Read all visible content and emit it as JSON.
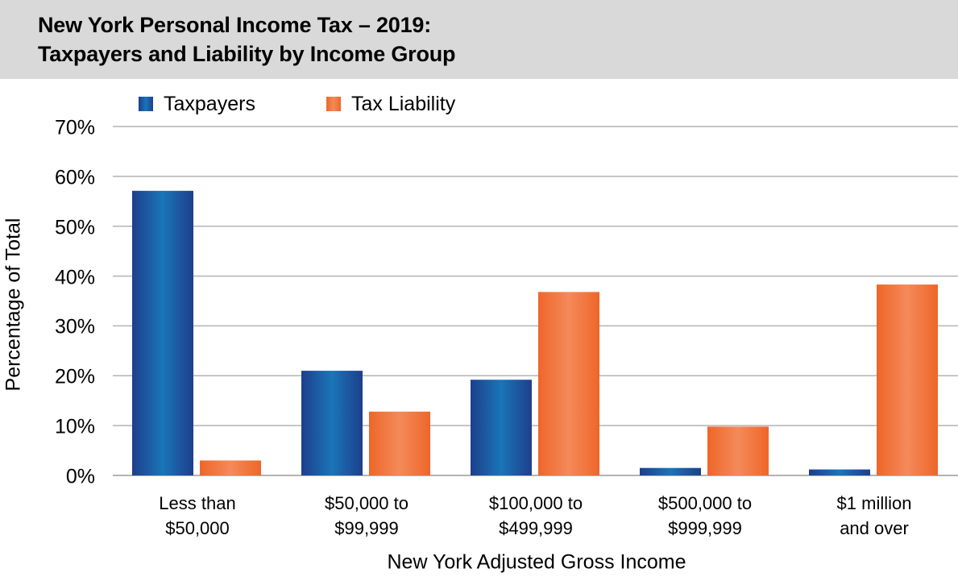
{
  "title": {
    "line1": "New York Personal Income Tax – 2019:",
    "line2": "Taxpayers and Liability by Income Group"
  },
  "colors": {
    "taxpayers_dark": "#1d3f8c",
    "taxpayers_light": "#1a75b8",
    "liability_dark": "#ee6629",
    "liability_light": "#f48a5a",
    "title_band": "#d9d9d9",
    "grid": "#b3b3b3"
  },
  "chart_data": {
    "type": "bar",
    "title": "New York Personal Income Tax – 2019: Taxpayers and Liability by Income Group",
    "xlabel": "New York Adjusted Gross Income",
    "ylabel": "Percentage of Total",
    "ylim": [
      0,
      70
    ],
    "yticks": [
      "0%",
      "10%",
      "20%",
      "30%",
      "40%",
      "50%",
      "60%",
      "70%"
    ],
    "grid": true,
    "legend_position": "top-left",
    "categories": [
      [
        "Less than",
        "$50,000"
      ],
      [
        "$50,000 to",
        "$99,999"
      ],
      [
        "$100,000 to",
        "$499,999"
      ],
      [
        "$500,000 to",
        "$999,999"
      ],
      [
        "$1 million",
        "and over"
      ]
    ],
    "series": [
      {
        "name": "Taxpayers",
        "values": [
          57.1,
          21.0,
          19.2,
          1.5,
          1.2
        ]
      },
      {
        "name": "Tax Liability",
        "values": [
          3.0,
          12.8,
          36.8,
          9.8,
          38.3
        ]
      }
    ]
  }
}
